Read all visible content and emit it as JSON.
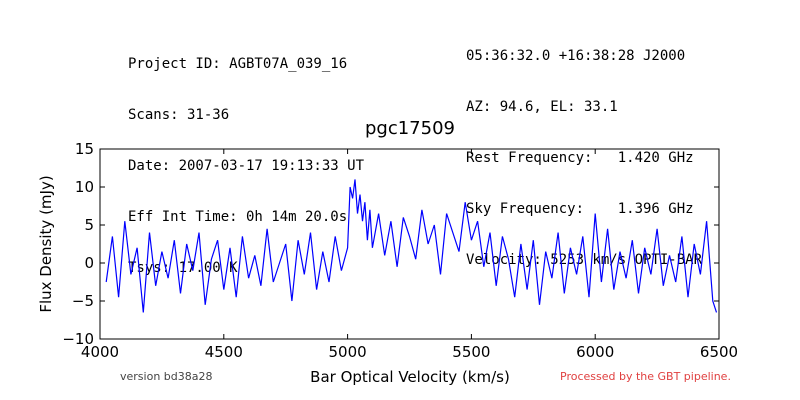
{
  "header_left": [
    "Project ID: AGBT07A_039_16",
    "Scans: 31-36",
    "Date: 2007-03-17 19:13:33 UT",
    "Eff Int Time: 0h 14m 20.0s",
    "Tsys: 17.00 K"
  ],
  "header_right": [
    "05:36:32.0 +16:38:28 J2000",
    "AZ: 94.6, EL: 33.1",
    "Rest Frequency:   1.420 GHz",
    "Sky Frequency:    1.396 GHz",
    "Velocity: 5253 km/s OPTI-BAR"
  ],
  "footer": {
    "version": "version bd38a28",
    "pipeline": "Processed by the GBT pipeline."
  },
  "colors": {
    "line": "#0000ff",
    "pipeline": "#e04040"
  },
  "chart_data": {
    "type": "line",
    "title": "pgc17509",
    "xlabel": "Bar Optical Velocity (km/s)",
    "ylabel": "Flux Density (mJy)",
    "xlim": [
      4000,
      6500
    ],
    "ylim": [
      -10,
      15
    ],
    "xticks": [
      4000,
      4500,
      5000,
      5500,
      6000,
      6500
    ],
    "yticks": [
      -10,
      -5,
      0,
      5,
      10,
      15
    ],
    "grid": false,
    "series": [
      {
        "x": [
          4025,
          4050,
          4075,
          4100,
          4125,
          4150,
          4175,
          4200,
          4225,
          4250,
          4275,
          4300,
          4325,
          4350,
          4375,
          4400,
          4425,
          4450,
          4475,
          4500,
          4525,
          4550,
          4575,
          4600,
          4625,
          4650,
          4675,
          4700,
          4725,
          4750,
          4775,
          4800,
          4825,
          4850,
          4875,
          4900,
          4925,
          4950,
          4975,
          5000,
          5010,
          5020,
          5030,
          5040,
          5050,
          5060,
          5070,
          5080,
          5090,
          5100,
          5125,
          5150,
          5175,
          5200,
          5225,
          5250,
          5275,
          5300,
          5325,
          5350,
          5375,
          5400,
          5425,
          5450,
          5475,
          5500,
          5525,
          5550,
          5575,
          5600,
          5625,
          5650,
          5675,
          5700,
          5725,
          5750,
          5775,
          5800,
          5825,
          5850,
          5875,
          5900,
          5925,
          5950,
          5975,
          6000,
          6025,
          6050,
          6075,
          6100,
          6125,
          6150,
          6175,
          6200,
          6225,
          6250,
          6275,
          6300,
          6325,
          6350,
          6375,
          6400,
          6425,
          6450,
          6475,
          6490
        ],
        "y": [
          -2.5,
          3.5,
          -4.5,
          5.5,
          -1.5,
          2.0,
          -6.5,
          4.0,
          -3.0,
          1.5,
          -2.0,
          3.0,
          -4.0,
          2.5,
          -1.0,
          4.0,
          -5.5,
          0.5,
          3.0,
          -3.5,
          2.0,
          -4.5,
          3.5,
          -2.0,
          1.0,
          -3.0,
          4.5,
          -2.5,
          0.0,
          2.5,
          -5.0,
          3.0,
          -1.5,
          4.0,
          -3.5,
          1.5,
          -2.5,
          3.5,
          -1.0,
          2.0,
          10.0,
          8.5,
          11.0,
          6.5,
          9.0,
          5.5,
          8.0,
          3.0,
          7.0,
          2.0,
          6.5,
          1.0,
          5.5,
          -0.5,
          6.0,
          3.5,
          0.5,
          7.0,
          2.5,
          5.0,
          -1.5,
          6.5,
          4.0,
          1.5,
          8.0,
          3.0,
          5.5,
          -0.5,
          4.0,
          -3.0,
          3.5,
          0.5,
          -4.5,
          2.5,
          -3.5,
          3.0,
          -5.5,
          1.5,
          -2.0,
          4.0,
          -4.0,
          2.0,
          -1.5,
          3.5,
          -4.5,
          6.5,
          -2.5,
          4.5,
          -3.5,
          1.5,
          -2.0,
          3.0,
          -4.0,
          2.0,
          -1.5,
          4.5,
          -3.0,
          1.0,
          -2.5,
          3.5,
          -4.5,
          2.5,
          -1.5,
          5.5,
          -5.0,
          -6.5
        ]
      }
    ]
  }
}
